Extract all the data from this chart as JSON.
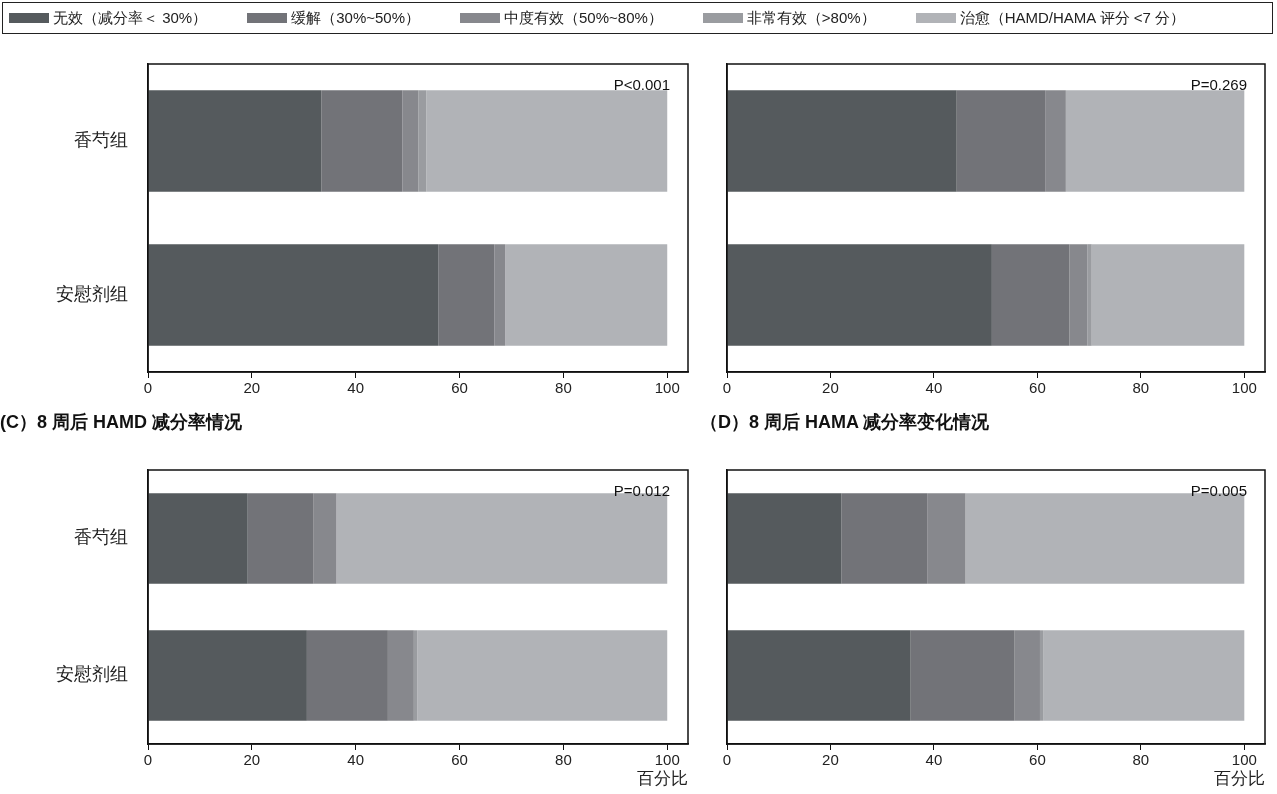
{
  "chart_data": [
    {
      "type": "bar",
      "orientation": "horizontal",
      "stacked": true,
      "categories": [
        "香芍组",
        "安慰剂组"
      ],
      "xlim": [
        0,
        104
      ],
      "xticks": [
        0,
        20,
        40,
        60,
        80,
        100
      ],
      "legend": "top",
      "annotations": [
        "P<0.001"
      ],
      "series": [
        {
          "name": "无效（减分率＜ 30%）",
          "color": "#555a5d",
          "values": [
            33.4,
            55.9
          ]
        },
        {
          "name": "缓解（30%~50%）",
          "color": "#727378",
          "values": [
            15.6,
            10.8
          ]
        },
        {
          "name": "中度有效（50%~80%）",
          "color": "#87888d",
          "values": [
            3.1,
            2.1
          ]
        },
        {
          "name": "非常有效（>80%）",
          "color": "#9a9ca0",
          "values": [
            1.5,
            0
          ]
        },
        {
          "name": "治愈（HAMD/HAMA 评分 <7 分）",
          "color": "#b1b3b7",
          "values": [
            46.4,
            31.2
          ]
        }
      ]
    },
    {
      "type": "bar",
      "orientation": "horizontal",
      "stacked": true,
      "categories": [
        null,
        null
      ],
      "xlim": [
        0,
        104
      ],
      "xticks": [
        0,
        20,
        40,
        60,
        80,
        100
      ],
      "annotations": [
        "P=0.269"
      ],
      "series": [
        {
          "color": "#555a5d",
          "values": [
            44.4,
            51.2
          ]
        },
        {
          "color": "#727378",
          "values": [
            17.2,
            15.0
          ]
        },
        {
          "color": "#87888d",
          "values": [
            3.9,
            3.5
          ]
        },
        {
          "color": "#9a9ca0",
          "values": [
            0,
            0.8
          ]
        },
        {
          "color": "#b1b3b7",
          "values": [
            34.5,
            29.5
          ]
        }
      ]
    },
    {
      "type": "bar",
      "orientation": "horizontal",
      "stacked": true,
      "title": "(C）8 周后 HAMD 减分率情况",
      "xlabel": "百分比",
      "categories": [
        "香芍组",
        "安慰剂组"
      ],
      "xlim": [
        0,
        104
      ],
      "xticks": [
        0,
        20,
        40,
        60,
        80,
        100
      ],
      "annotations": [
        "P=0.012"
      ],
      "series": [
        {
          "color": "#555a5d",
          "values": [
            19.2,
            30.6
          ]
        },
        {
          "color": "#727378",
          "values": [
            12.7,
            15.6
          ]
        },
        {
          "color": "#87888d",
          "values": [
            4.4,
            5.0
          ]
        },
        {
          "color": "#9a9ca0",
          "values": [
            0,
            0.7
          ]
        },
        {
          "color": "#b1b3b7",
          "values": [
            63.7,
            48.1
          ]
        }
      ]
    },
    {
      "type": "bar",
      "orientation": "horizontal",
      "stacked": true,
      "title": "（D）8 周后 HAMA 减分率变化情况",
      "xlabel": "百分比",
      "categories": [
        null,
        null
      ],
      "xlim": [
        0,
        104
      ],
      "xticks": [
        0,
        20,
        40,
        60,
        80,
        100
      ],
      "annotations": [
        "P=0.005"
      ],
      "series": [
        {
          "color": "#555a5d",
          "values": [
            22.1,
            35.5
          ]
        },
        {
          "color": "#727378",
          "values": [
            16.6,
            20.1
          ]
        },
        {
          "color": "#87888d",
          "values": [
            7.4,
            4.9
          ]
        },
        {
          "color": "#9a9ca0",
          "values": [
            0,
            0.7
          ]
        },
        {
          "color": "#b1b3b7",
          "values": [
            53.9,
            38.8
          ]
        }
      ]
    }
  ]
}
